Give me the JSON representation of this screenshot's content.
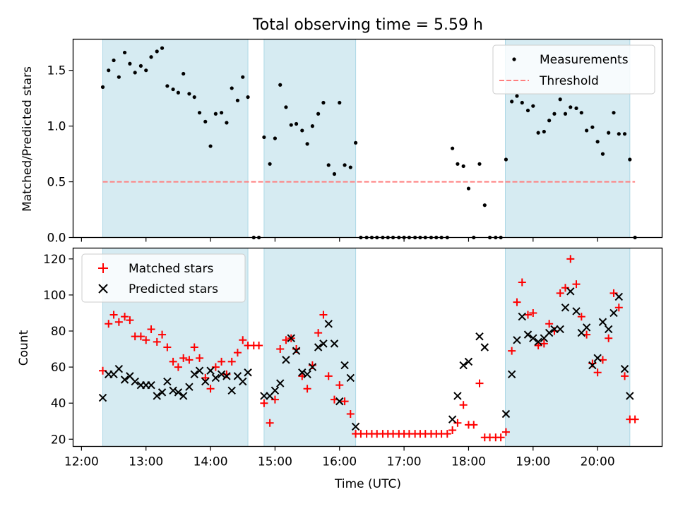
{
  "chart_data": {
    "title": "Total observing time = 5.59 h",
    "xlabel": "Time (UTC)",
    "x_units": "hours (UTC, decimal)",
    "xlim": [
      11.87,
      21.0
    ],
    "x_ticks": [
      {
        "value": 12,
        "label": "12:00"
      },
      {
        "value": 13,
        "label": "13:00"
      },
      {
        "value": 14,
        "label": "14:00"
      },
      {
        "value": 15,
        "label": "15:00"
      },
      {
        "value": 16,
        "label": "16:00"
      },
      {
        "value": 17,
        "label": "17:00"
      },
      {
        "value": 18,
        "label": "18:00"
      },
      {
        "value": 19,
        "label": "19:00"
      },
      {
        "value": 20,
        "label": "20:00"
      }
    ],
    "observing_windows": [
      [
        12.33,
        14.58
      ],
      [
        14.83,
        16.25
      ],
      [
        18.57,
        20.5
      ]
    ],
    "colors": {
      "window": "#add8e6",
      "threshold": "#ff7f7f",
      "measurements": "#000000",
      "matched": "#ff0000",
      "predicted": "#000000"
    },
    "top_panel": {
      "type": "scatter",
      "ylabel": "Matched/Predicted stars",
      "ylim": [
        0,
        1.78
      ],
      "y_ticks": [
        {
          "value": 0,
          "label": "0.0"
        },
        {
          "value": 0.5,
          "label": "0.5"
        },
        {
          "value": 1.0,
          "label": "1.0"
        },
        {
          "value": 1.5,
          "label": "1.5"
        }
      ],
      "legend_position": "top-right",
      "threshold": {
        "name": "Threshold",
        "y": 0.5,
        "x_range": [
          12.33,
          20.58
        ]
      },
      "measurements": {
        "name": "Measurements",
        "points": [
          [
            12.33,
            1.35
          ],
          [
            12.42,
            1.5
          ],
          [
            12.5,
            1.59
          ],
          [
            12.58,
            1.44
          ],
          [
            12.67,
            1.66
          ],
          [
            12.75,
            1.56
          ],
          [
            12.83,
            1.48
          ],
          [
            12.92,
            1.54
          ],
          [
            13.0,
            1.5
          ],
          [
            13.08,
            1.62
          ],
          [
            13.17,
            1.67
          ],
          [
            13.25,
            1.7
          ],
          [
            13.33,
            1.36
          ],
          [
            13.42,
            1.33
          ],
          [
            13.5,
            1.3
          ],
          [
            13.58,
            1.47
          ],
          [
            13.67,
            1.29
          ],
          [
            13.75,
            1.26
          ],
          [
            13.83,
            1.12
          ],
          [
            13.92,
            1.04
          ],
          [
            14.0,
            0.82
          ],
          [
            14.08,
            1.11
          ],
          [
            14.17,
            1.12
          ],
          [
            14.25,
            1.03
          ],
          [
            14.33,
            1.34
          ],
          [
            14.42,
            1.23
          ],
          [
            14.5,
            1.44
          ],
          [
            14.58,
            1.26
          ],
          [
            14.67,
            0.0
          ],
          [
            14.75,
            0.0
          ],
          [
            14.83,
            0.9
          ],
          [
            14.92,
            0.66
          ],
          [
            15.0,
            0.89
          ],
          [
            15.08,
            1.37
          ],
          [
            15.17,
            1.17
          ],
          [
            15.25,
            1.01
          ],
          [
            15.33,
            1.02
          ],
          [
            15.42,
            0.96
          ],
          [
            15.5,
            0.84
          ],
          [
            15.58,
            1.0
          ],
          [
            15.67,
            1.11
          ],
          [
            15.75,
            1.21
          ],
          [
            15.83,
            0.65
          ],
          [
            15.92,
            0.57
          ],
          [
            16.0,
            1.21
          ],
          [
            16.08,
            0.65
          ],
          [
            16.17,
            0.63
          ],
          [
            16.25,
            0.85
          ],
          [
            16.33,
            0.0
          ],
          [
            16.42,
            0.0
          ],
          [
            16.5,
            0.0
          ],
          [
            16.58,
            0.0
          ],
          [
            16.67,
            0.0
          ],
          [
            16.75,
            0.0
          ],
          [
            16.83,
            0.0
          ],
          [
            16.92,
            0.0
          ],
          [
            17.0,
            0.0
          ],
          [
            17.08,
            0.0
          ],
          [
            17.17,
            0.0
          ],
          [
            17.25,
            0.0
          ],
          [
            17.33,
            0.0
          ],
          [
            17.42,
            0.0
          ],
          [
            17.5,
            0.0
          ],
          [
            17.58,
            0.0
          ],
          [
            17.67,
            0.0
          ],
          [
            17.75,
            0.8
          ],
          [
            17.83,
            0.66
          ],
          [
            17.92,
            0.64
          ],
          [
            18.0,
            0.44
          ],
          [
            18.08,
            0.0
          ],
          [
            18.17,
            0.66
          ],
          [
            18.25,
            0.29
          ],
          [
            18.33,
            0.0
          ],
          [
            18.42,
            0.0
          ],
          [
            18.5,
            0.0
          ],
          [
            18.58,
            0.7
          ],
          [
            18.67,
            1.22
          ],
          [
            18.75,
            1.27
          ],
          [
            18.83,
            1.21
          ],
          [
            18.92,
            1.14
          ],
          [
            19.0,
            1.18
          ],
          [
            19.08,
            0.94
          ],
          [
            19.17,
            0.95
          ],
          [
            19.25,
            1.05
          ],
          [
            19.33,
            1.11
          ],
          [
            19.42,
            1.24
          ],
          [
            19.5,
            1.11
          ],
          [
            19.58,
            1.17
          ],
          [
            19.67,
            1.16
          ],
          [
            19.75,
            1.12
          ],
          [
            19.83,
            0.96
          ],
          [
            19.92,
            0.99
          ],
          [
            20.0,
            0.86
          ],
          [
            20.08,
            0.75
          ],
          [
            20.17,
            0.94
          ],
          [
            20.25,
            1.12
          ],
          [
            20.33,
            0.93
          ],
          [
            20.42,
            0.93
          ],
          [
            20.5,
            0.7
          ],
          [
            20.58,
            0.0
          ]
        ]
      }
    },
    "bottom_panel": {
      "type": "scatter",
      "ylabel": "Count",
      "ylim": [
        16,
        126
      ],
      "y_ticks": [
        {
          "value": 20,
          "label": "20"
        },
        {
          "value": 40,
          "label": "40"
        },
        {
          "value": 60,
          "label": "60"
        },
        {
          "value": 80,
          "label": "80"
        },
        {
          "value": 100,
          "label": "100"
        },
        {
          "value": 120,
          "label": "120"
        }
      ],
      "legend_position": "top-left",
      "matched": {
        "name": "Matched stars",
        "points": [
          [
            12.33,
            58
          ],
          [
            12.42,
            84
          ],
          [
            12.5,
            89
          ],
          [
            12.58,
            85
          ],
          [
            12.67,
            88
          ],
          [
            12.75,
            86
          ],
          [
            12.83,
            77
          ],
          [
            12.92,
            77
          ],
          [
            13.0,
            75
          ],
          [
            13.08,
            81
          ],
          [
            13.17,
            74
          ],
          [
            13.25,
            78
          ],
          [
            13.33,
            71
          ],
          [
            13.42,
            63
          ],
          [
            13.5,
            60
          ],
          [
            13.58,
            65
          ],
          [
            13.67,
            64
          ],
          [
            13.75,
            71
          ],
          [
            13.83,
            65
          ],
          [
            13.92,
            54
          ],
          [
            14.0,
            48
          ],
          [
            14.08,
            60
          ],
          [
            14.17,
            63
          ],
          [
            14.25,
            56
          ],
          [
            14.33,
            63
          ],
          [
            14.42,
            68
          ],
          [
            14.5,
            75
          ],
          [
            14.58,
            72
          ],
          [
            14.67,
            72
          ],
          [
            14.75,
            72
          ],
          [
            14.83,
            40
          ],
          [
            14.92,
            29
          ],
          [
            15.0,
            42
          ],
          [
            15.08,
            70
          ],
          [
            15.17,
            75
          ],
          [
            15.25,
            76
          ],
          [
            15.33,
            70
          ],
          [
            15.42,
            55
          ],
          [
            15.5,
            48
          ],
          [
            15.58,
            61
          ],
          [
            15.67,
            79
          ],
          [
            15.75,
            89
          ],
          [
            15.83,
            55
          ],
          [
            15.92,
            42
          ],
          [
            16.0,
            50
          ],
          [
            16.08,
            41
          ],
          [
            16.17,
            34
          ],
          [
            16.25,
            23
          ],
          [
            16.33,
            23
          ],
          [
            16.42,
            23
          ],
          [
            16.5,
            23
          ],
          [
            16.58,
            23
          ],
          [
            16.67,
            23
          ],
          [
            16.75,
            23
          ],
          [
            16.83,
            23
          ],
          [
            16.92,
            23
          ],
          [
            17.0,
            23
          ],
          [
            17.08,
            23
          ],
          [
            17.17,
            23
          ],
          [
            17.25,
            23
          ],
          [
            17.33,
            23
          ],
          [
            17.42,
            23
          ],
          [
            17.5,
            23
          ],
          [
            17.58,
            23
          ],
          [
            17.67,
            23
          ],
          [
            17.75,
            25
          ],
          [
            17.83,
            29
          ],
          [
            17.92,
            39
          ],
          [
            18.0,
            28
          ],
          [
            18.08,
            28
          ],
          [
            18.17,
            51
          ],
          [
            18.25,
            21
          ],
          [
            18.33,
            21
          ],
          [
            18.42,
            21
          ],
          [
            18.5,
            21
          ],
          [
            18.58,
            24
          ],
          [
            18.67,
            69
          ],
          [
            18.75,
            96
          ],
          [
            18.83,
            107
          ],
          [
            18.92,
            89
          ],
          [
            19.0,
            90
          ],
          [
            19.08,
            72
          ],
          [
            19.17,
            73
          ],
          [
            19.25,
            84
          ],
          [
            19.33,
            80
          ],
          [
            19.42,
            101
          ],
          [
            19.5,
            104
          ],
          [
            19.58,
            120
          ],
          [
            19.67,
            106
          ],
          [
            19.75,
            88
          ],
          [
            19.83,
            78
          ],
          [
            19.92,
            62
          ],
          [
            20.0,
            57
          ],
          [
            20.08,
            64
          ],
          [
            20.17,
            76
          ],
          [
            20.25,
            101
          ],
          [
            20.33,
            93
          ],
          [
            20.42,
            55
          ],
          [
            20.5,
            31
          ],
          [
            20.58,
            31
          ]
        ]
      },
      "predicted": {
        "name": "Predicted stars",
        "points": [
          [
            12.33,
            43
          ],
          [
            12.42,
            56
          ],
          [
            12.5,
            56
          ],
          [
            12.58,
            59
          ],
          [
            12.67,
            53
          ],
          [
            12.75,
            55
          ],
          [
            12.83,
            52
          ],
          [
            12.92,
            50
          ],
          [
            13.0,
            50
          ],
          [
            13.08,
            50
          ],
          [
            13.17,
            44
          ],
          [
            13.25,
            46
          ],
          [
            13.33,
            52
          ],
          [
            13.42,
            47
          ],
          [
            13.5,
            46
          ],
          [
            13.58,
            44
          ],
          [
            13.67,
            49
          ],
          [
            13.75,
            56
          ],
          [
            13.83,
            58
          ],
          [
            13.92,
            52
          ],
          [
            14.0,
            58
          ],
          [
            14.08,
            54
          ],
          [
            14.17,
            56
          ],
          [
            14.25,
            55
          ],
          [
            14.33,
            47
          ],
          [
            14.42,
            55
          ],
          [
            14.5,
            52
          ],
          [
            14.58,
            57
          ],
          [
            14.83,
            44
          ],
          [
            14.92,
            44
          ],
          [
            15.0,
            47
          ],
          [
            15.08,
            51
          ],
          [
            15.17,
            64
          ],
          [
            15.25,
            76
          ],
          [
            15.33,
            69
          ],
          [
            15.42,
            57
          ],
          [
            15.5,
            56
          ],
          [
            15.58,
            60
          ],
          [
            15.67,
            71
          ],
          [
            15.75,
            73
          ],
          [
            15.83,
            84
          ],
          [
            15.92,
            73
          ],
          [
            16.0,
            41
          ],
          [
            16.08,
            61
          ],
          [
            16.17,
            54
          ],
          [
            16.25,
            27
          ],
          [
            17.75,
            31
          ],
          [
            17.83,
            44
          ],
          [
            17.92,
            61
          ],
          [
            18.0,
            63
          ],
          [
            18.17,
            77
          ],
          [
            18.25,
            71
          ],
          [
            18.58,
            34
          ],
          [
            18.67,
            56
          ],
          [
            18.75,
            75
          ],
          [
            18.83,
            88
          ],
          [
            18.92,
            78
          ],
          [
            19.0,
            76
          ],
          [
            19.08,
            74
          ],
          [
            19.17,
            76
          ],
          [
            19.25,
            79
          ],
          [
            19.33,
            81
          ],
          [
            19.42,
            81
          ],
          [
            19.5,
            93
          ],
          [
            19.58,
            102
          ],
          [
            19.67,
            91
          ],
          [
            19.75,
            79
          ],
          [
            19.83,
            82
          ],
          [
            19.92,
            61
          ],
          [
            20.0,
            65
          ],
          [
            20.08,
            85
          ],
          [
            20.17,
            81
          ],
          [
            20.25,
            90
          ],
          [
            20.33,
            99
          ],
          [
            20.42,
            59
          ],
          [
            20.5,
            44
          ]
        ]
      }
    }
  }
}
